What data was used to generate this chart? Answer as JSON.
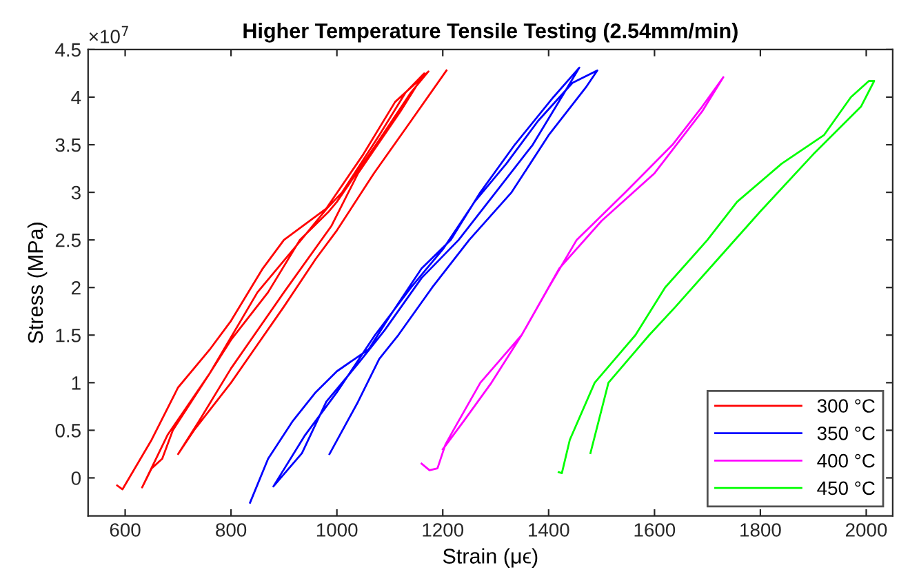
{
  "chart_data": {
    "type": "line",
    "title": "Higher Temperature Tensile Testing (2.54mm/min)",
    "xlabel": "Strain (μϵ)",
    "ylabel": "Stress (MPa)",
    "annotations": [
      "×10$^{7}$"
    ],
    "xlim": [
      530,
      2050
    ],
    "ylim": [
      -0.4,
      4.5
    ],
    "xticks": [
      600,
      800,
      1000,
      1200,
      1400,
      1600,
      1800,
      2000
    ],
    "yticks": [
      0,
      0.5,
      1,
      1.5,
      2,
      2.5,
      3,
      3.5,
      4,
      4.5
    ],
    "grid": false,
    "legend": "bottom right",
    "marker": "none",
    "line_style": "solid",
    "series": [
      {
        "name": "300 °C",
        "color": "#ff0000",
        "x": [
          585,
          595,
          650,
          700,
          760,
          800,
          860,
          900,
          980,
          1050,
          1110,
          1173,
          1140,
          1080,
          1000,
          985,
          930,
          870,
          800,
          760,
          690,
          670,
          650,
          632,
          680,
          760,
          850,
          925,
          981,
          1010,
          1080,
          1130,
          1165,
          1120,
          1040,
          990,
          900,
          800,
          740,
          700,
          730,
          800,
          900,
          960,
          1000,
          1070,
          1140,
          1207
        ],
        "values": [
          -0.08,
          -0.12,
          0.4,
          0.95,
          1.35,
          1.65,
          2.2,
          2.5,
          2.83,
          3.4,
          3.95,
          4.27,
          4.05,
          3.55,
          2.9,
          2.8,
          2.5,
          1.95,
          1.45,
          1.1,
          0.5,
          0.2,
          0.1,
          -0.1,
          0.45,
          1.1,
          1.95,
          2.45,
          2.83,
          3.0,
          3.6,
          4.05,
          4.25,
          3.85,
          3.2,
          2.65,
          1.95,
          1.15,
          0.6,
          0.25,
          0.5,
          1.0,
          1.8,
          2.3,
          2.6,
          3.2,
          3.75,
          4.28
        ]
      },
      {
        "name": "350 °C",
        "color": "#0000ff",
        "x": [
          836,
          870,
          917,
          960,
          1000,
          1060,
          1100,
          1160,
          1215,
          1271,
          1336,
          1409,
          1458,
          1430,
          1370,
          1300,
          1230,
          1160,
          1090,
          1040,
          980,
          934,
          880,
          940,
          1000,
          1072,
          1140,
          1200,
          1260,
          1320,
          1380,
          1445,
          1492,
          1470,
          1400,
          1330,
          1250,
          1180,
          1116,
          1080,
          1040,
          986
        ],
        "values": [
          -0.26,
          0.2,
          0.6,
          0.9,
          1.12,
          1.35,
          1.7,
          2.2,
          2.5,
          3.0,
          3.5,
          4.0,
          4.31,
          4.05,
          3.5,
          3.0,
          2.5,
          2.1,
          1.55,
          1.2,
          0.8,
          0.26,
          -0.09,
          0.45,
          0.9,
          1.5,
          2.0,
          2.4,
          2.9,
          3.3,
          3.75,
          4.15,
          4.28,
          4.1,
          3.6,
          3.0,
          2.5,
          2.0,
          1.5,
          1.25,
          0.8,
          0.25
        ]
      },
      {
        "name": "400 °C",
        "color": "#ff00ff",
        "x": [
          1160,
          1175,
          1190,
          1205,
          1220,
          1271,
          1349,
          1400,
          1453,
          1545,
          1634,
          1690,
          1730,
          1690,
          1600,
          1500,
          1420,
          1349,
          1292,
          1240,
          1200
        ],
        "values": [
          0.15,
          0.08,
          0.1,
          0.35,
          0.5,
          1.0,
          1.5,
          2.0,
          2.5,
          3.0,
          3.5,
          3.9,
          4.21,
          3.85,
          3.2,
          2.7,
          2.2,
          1.5,
          1.0,
          0.6,
          0.3
        ]
      },
      {
        "name": "450 °C",
        "color": "#00ff00",
        "x": [
          1419,
          1425,
          1440,
          1487,
          1564,
          1620,
          1700,
          1756,
          1840,
          1920,
          1971,
          2005,
          2015,
          1990,
          1900,
          1800,
          1720,
          1640,
          1590,
          1513,
          1479
        ],
        "values": [
          0.06,
          0.05,
          0.4,
          1.0,
          1.5,
          2.0,
          2.5,
          2.9,
          3.3,
          3.6,
          4.0,
          4.17,
          4.17,
          3.9,
          3.4,
          2.8,
          2.3,
          1.8,
          1.5,
          1.0,
          0.26
        ]
      }
    ]
  }
}
